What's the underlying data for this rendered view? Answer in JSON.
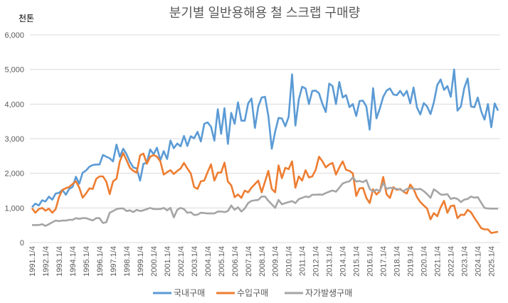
{
  "chart_data": {
    "type": "line",
    "title": "분기별 일반용해용 철 스크랩 구매량",
    "ylabel": "천톤",
    "xlabel": "",
    "ylim": [
      0,
      6000
    ],
    "yticks": [
      0,
      1000,
      2000,
      3000,
      4000,
      5000,
      6000
    ],
    "ytick_labels": [
      "0",
      "1,000",
      "2,000",
      "3,000",
      "4,000",
      "5,000",
      "6,000"
    ],
    "grid": "horizontal",
    "legend_position": "bottom",
    "x_period": "quarterly, 1991.1/4 to 2025.3/4",
    "x_start_year": 1991,
    "xtick_labels": [
      "1991.1/4",
      "1992.1/4",
      "1993.1/4",
      "1994.1/4",
      "1995.1/4",
      "1996.1/4",
      "1997.1/4",
      "1998.1/4",
      "1999.1/4",
      "2000.1/4",
      "2001.1/4",
      "2002.1/4",
      "2003.1/4",
      "2004.1/4",
      "2005.1/4",
      "2006.1/4",
      "2007.1/4",
      "2008.1/4",
      "2009.1/4",
      "2010.1/4",
      "2011.1/4",
      "2012.1/4",
      "2013.1/4",
      "2014.1/4",
      "2015.1/4",
      "2016.1/4",
      "2017.1/4",
      "2018.1/4",
      "2019.1/4",
      "2020.1/4",
      "2021.1/4",
      "2022.1/4",
      "2023.1/4",
      "2024.1/4",
      "2025.1/4"
    ],
    "series": [
      {
        "name": "국내구매",
        "color": "#5B9BD5",
        "values": [
          1020,
          1125,
          1070,
          1220,
          1185,
          1325,
          1240,
          1415,
          1435,
          1525,
          1380,
          1550,
          1605,
          1900,
          1700,
          2020,
          2080,
          2190,
          2240,
          2255,
          2255,
          2530,
          2480,
          2435,
          2345,
          2830,
          2480,
          2710,
          2550,
          2330,
          2170,
          2140,
          1790,
          2275,
          2310,
          2690,
          2550,
          2740,
          2380,
          2640,
          2415,
          2945,
          2725,
          2860,
          2780,
          3080,
          2790,
          3070,
          3010,
          3200,
          2920,
          3430,
          3470,
          3345,
          2945,
          3850,
          3140,
          3880,
          2850,
          3745,
          3430,
          4050,
          3520,
          3520,
          4020,
          4160,
          3310,
          3930,
          4190,
          4210,
          3655,
          2710,
          3200,
          3600,
          3585,
          3360,
          3630,
          4860,
          3380,
          4140,
          4500,
          4450,
          4000,
          4380,
          4390,
          4310,
          4000,
          3770,
          4590,
          4520,
          4000,
          4640,
          4190,
          4260,
          3910,
          4000,
          3655,
          4090,
          4100,
          3930,
          3260,
          4460,
          3585,
          3875,
          4210,
          4390,
          4450,
          4280,
          4255,
          4380,
          4240,
          4380,
          4020,
          4480,
          3900,
          3700,
          4030,
          3930,
          3710,
          4050,
          4550,
          4710,
          4410,
          4520,
          4210,
          5000,
          3810,
          3930,
          4460,
          4740,
          3930,
          3910,
          4190,
          3795,
          3550,
          4000,
          3330,
          4020,
          3810
        ]
      },
      {
        "name": "수입구매",
        "color": "#ED7D31",
        "values": [
          990,
          860,
          965,
          1000,
          920,
          980,
          860,
          965,
          1310,
          1520,
          1570,
          1605,
          1690,
          1770,
          1585,
          1295,
          1415,
          1565,
          1550,
          1840,
          1910,
          1910,
          1760,
          1400,
          1770,
          1840,
          2345,
          2585,
          2380,
          2160,
          2070,
          2020,
          2520,
          2570,
          2275,
          2480,
          2530,
          2480,
          2345,
          1965,
          2035,
          2090,
          1980,
          2070,
          2140,
          2300,
          2140,
          2000,
          1605,
          1550,
          1770,
          1790,
          2035,
          2260,
          1790,
          2020,
          2020,
          2310,
          1760,
          1655,
          1310,
          1390,
          1290,
          1500,
          1450,
          1585,
          1690,
          1790,
          1450,
          1760,
          2070,
          1550,
          1450,
          2230,
          1860,
          2160,
          2120,
          2345,
          1585,
          1910,
          1790,
          2090,
          1880,
          1910,
          2100,
          2480,
          2345,
          2170,
          2255,
          2300,
          1965,
          2170,
          2345,
          2100,
          2070,
          2000,
          1345,
          1565,
          1580,
          1290,
          1140,
          1540,
          1390,
          1480,
          1895,
          1390,
          1290,
          1600,
          1520,
          1550,
          1470,
          1415,
          1675,
          1550,
          1310,
          1170,
          1070,
          985,
          670,
          850,
          760,
          1015,
          1205,
          860,
          1055,
          1070,
          705,
          805,
          795,
          945,
          875,
          710,
          570,
          415,
          380,
          380,
          275,
          295,
          310
        ]
      },
      {
        "name": "자가발생구매",
        "color": "#A5A5A5",
        "values": [
          505,
          505,
          505,
          530,
          480,
          530,
          585,
          635,
          620,
          635,
          635,
          655,
          655,
          705,
          685,
          705,
          705,
          670,
          640,
          705,
          705,
          565,
          585,
          860,
          910,
          965,
          985,
          985,
          910,
          930,
          880,
          945,
          910,
          930,
          965,
          1000,
          965,
          965,
          965,
          1000,
          930,
          1000,
          725,
          945,
          1000,
          965,
          860,
          875,
          795,
          805,
          860,
          850,
          840,
          840,
          840,
          895,
          895,
          880,
          910,
          1070,
          945,
          1020,
          895,
          985,
          1140,
          1205,
          1220,
          1230,
          1330,
          1330,
          1205,
          1105,
          1000,
          1230,
          1105,
          1140,
          1170,
          1195,
          1140,
          1255,
          1290,
          1330,
          1310,
          1380,
          1380,
          1390,
          1380,
          1430,
          1470,
          1505,
          1470,
          1585,
          1705,
          1745,
          1770,
          1885,
          1760,
          1780,
          1745,
          1805,
          1550,
          1470,
          1530,
          1485,
          1725,
          1550,
          1585,
          1570,
          1550,
          1530,
          1485,
          1550,
          1570,
          1550,
          1540,
          1550,
          1485,
          1400,
          1290,
          1540,
          1470,
          1390,
          1380,
          1400,
          1260,
          1290,
          1260,
          1170,
          1240,
          1260,
          1330,
          1295,
          1310,
          1150,
          1000,
          985,
          980,
          980,
          980
        ]
      }
    ]
  }
}
